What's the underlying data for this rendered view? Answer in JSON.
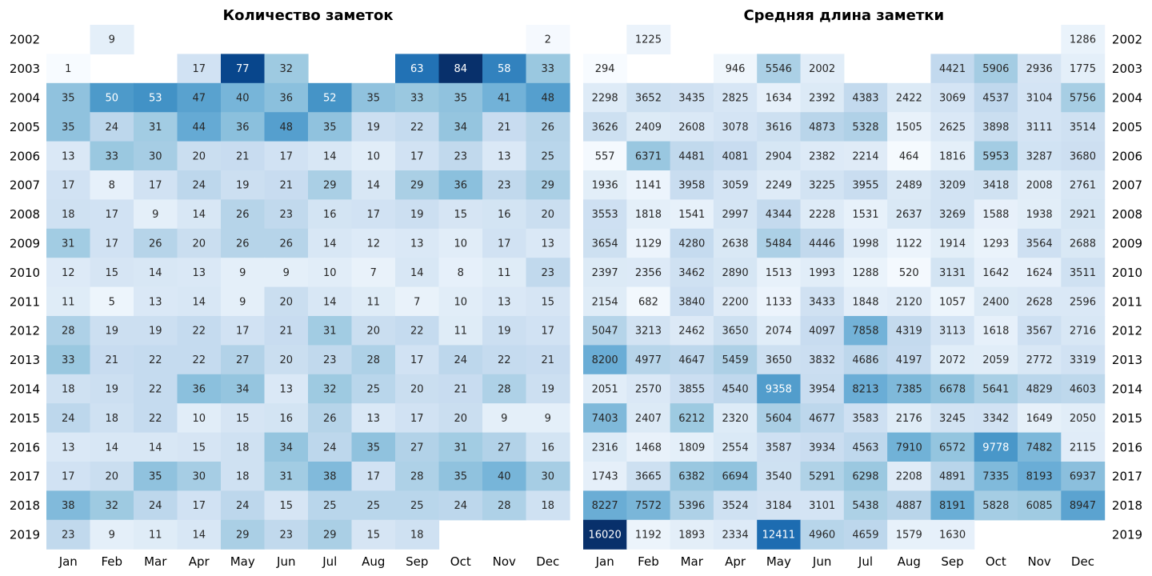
{
  "years": [
    "2002",
    "2003",
    "2004",
    "2005",
    "2006",
    "2007",
    "2008",
    "2009",
    "2010",
    "2011",
    "2012",
    "2013",
    "2014",
    "2015",
    "2016",
    "2017",
    "2018",
    "2019"
  ],
  "months": [
    "Jan",
    "Feb",
    "Mar",
    "Apr",
    "May",
    "Jun",
    "Jul",
    "Aug",
    "Sep",
    "Oct",
    "Nov",
    "Dec"
  ],
  "colormap": [
    "#f7fbff",
    "#deebf7",
    "#c6dbef",
    "#9ecae1",
    "#6baed6",
    "#4292c6",
    "#2171b5",
    "#08519c",
    "#08306b"
  ],
  "chart_data": [
    {
      "type": "heatmap",
      "title": "Количество заметок",
      "x": [
        "Jan",
        "Feb",
        "Mar",
        "Apr",
        "May",
        "Jun",
        "Jul",
        "Aug",
        "Sep",
        "Oct",
        "Nov",
        "Dec"
      ],
      "y": [
        "2002",
        "2003",
        "2004",
        "2005",
        "2006",
        "2007",
        "2008",
        "2009",
        "2010",
        "2011",
        "2012",
        "2013",
        "2014",
        "2015",
        "2016",
        "2017",
        "2018",
        "2019"
      ],
      "range": [
        1,
        84
      ],
      "values": [
        [
          null,
          9,
          null,
          null,
          null,
          null,
          null,
          null,
          null,
          null,
          null,
          2
        ],
        [
          1,
          null,
          null,
          17,
          77,
          32,
          null,
          null,
          63,
          84,
          58,
          33
        ],
        [
          35,
          50,
          53,
          47,
          40,
          36,
          52,
          35,
          33,
          35,
          41,
          48
        ],
        [
          35,
          24,
          31,
          44,
          36,
          48,
          35,
          19,
          22,
          34,
          21,
          26
        ],
        [
          13,
          33,
          30,
          20,
          21,
          17,
          14,
          10,
          17,
          23,
          13,
          25
        ],
        [
          17,
          8,
          17,
          24,
          19,
          21,
          29,
          14,
          29,
          36,
          23,
          29
        ],
        [
          18,
          17,
          9,
          14,
          26,
          23,
          16,
          17,
          19,
          15,
          16,
          20
        ],
        [
          31,
          17,
          26,
          20,
          26,
          26,
          14,
          12,
          13,
          10,
          17,
          13
        ],
        [
          12,
          15,
          14,
          13,
          9,
          9,
          10,
          7,
          14,
          8,
          11,
          23
        ],
        [
          11,
          5,
          13,
          14,
          9,
          20,
          14,
          11,
          7,
          10,
          13,
          15
        ],
        [
          28,
          19,
          19,
          22,
          17,
          21,
          31,
          20,
          22,
          11,
          19,
          17
        ],
        [
          33,
          21,
          22,
          22,
          27,
          20,
          23,
          28,
          17,
          24,
          22,
          21
        ],
        [
          18,
          19,
          22,
          36,
          34,
          13,
          32,
          25,
          20,
          21,
          28,
          19
        ],
        [
          24,
          18,
          22,
          10,
          15,
          16,
          26,
          13,
          17,
          20,
          9,
          9
        ],
        [
          13,
          14,
          14,
          15,
          18,
          34,
          24,
          35,
          27,
          31,
          27,
          16
        ],
        [
          17,
          20,
          35,
          30,
          18,
          31,
          38,
          17,
          28,
          35,
          40,
          30
        ],
        [
          38,
          32,
          24,
          17,
          24,
          15,
          25,
          25,
          25,
          24,
          28,
          18
        ],
        [
          23,
          9,
          11,
          14,
          29,
          23,
          29,
          15,
          18,
          null,
          null,
          null
        ]
      ]
    },
    {
      "type": "heatmap",
      "title": "Средняя длина заметки",
      "x": [
        "Jan",
        "Feb",
        "Mar",
        "Apr",
        "May",
        "Jun",
        "Jul",
        "Aug",
        "Sep",
        "Oct",
        "Nov",
        "Dec"
      ],
      "y": [
        "2002",
        "2003",
        "2004",
        "2005",
        "2006",
        "2007",
        "2008",
        "2009",
        "2010",
        "2011",
        "2012",
        "2013",
        "2014",
        "2015",
        "2016",
        "2017",
        "2018",
        "2019"
      ],
      "range": [
        294,
        16020
      ],
      "values": [
        [
          null,
          1225,
          null,
          null,
          null,
          null,
          null,
          null,
          null,
          null,
          null,
          1286
        ],
        [
          294,
          null,
          null,
          946,
          5546,
          2002,
          null,
          null,
          4421,
          5906,
          2936,
          1775
        ],
        [
          2298,
          3652,
          3435,
          2825,
          1634,
          2392,
          4383,
          2422,
          3069,
          4537,
          3104,
          5756
        ],
        [
          3626,
          2409,
          2608,
          3078,
          3616,
          4873,
          5328,
          1505,
          2625,
          3898,
          3111,
          3514
        ],
        [
          557,
          6371,
          4481,
          4081,
          2904,
          2382,
          2214,
          464,
          1816,
          5953,
          3287,
          3680
        ],
        [
          1936,
          1141,
          3958,
          3059,
          2249,
          3225,
          3955,
          2489,
          3209,
          3418,
          2008,
          2761
        ],
        [
          3553,
          1818,
          1541,
          2997,
          4344,
          2228,
          1531,
          2637,
          3269,
          1588,
          1938,
          2921
        ],
        [
          3654,
          1129,
          4280,
          2638,
          5484,
          4446,
          1998,
          1122,
          1914,
          1293,
          3564,
          2688
        ],
        [
          2397,
          2356,
          3462,
          2890,
          1513,
          1993,
          1288,
          520,
          3131,
          1642,
          1624,
          3511
        ],
        [
          2154,
          682,
          3840,
          2200,
          1133,
          3433,
          1848,
          2120,
          1057,
          2400,
          2628,
          2596
        ],
        [
          5047,
          3213,
          2462,
          3650,
          2074,
          4097,
          7858,
          4319,
          3113,
          1618,
          3567,
          2716
        ],
        [
          8200,
          4977,
          4647,
          5459,
          3650,
          3832,
          4686,
          4197,
          2072,
          2059,
          2772,
          3319
        ],
        [
          2051,
          2570,
          3855,
          4540,
          9358,
          3954,
          8213,
          7385,
          6678,
          5641,
          4829,
          4603
        ],
        [
          7403,
          2407,
          6212,
          2320,
          5604,
          4677,
          3583,
          2176,
          3245,
          3342,
          1649,
          2050
        ],
        [
          2316,
          1468,
          1809,
          2554,
          3587,
          3934,
          4563,
          7910,
          6572,
          9778,
          7482,
          2115
        ],
        [
          1743,
          3665,
          6382,
          6694,
          3540,
          5291,
          6298,
          2208,
          4891,
          7335,
          8193,
          6937
        ],
        [
          8227,
          7572,
          5396,
          3524,
          3184,
          3101,
          5438,
          4887,
          8191,
          5828,
          6085,
          8947
        ],
        [
          16020,
          1192,
          1893,
          2334,
          12411,
          4960,
          4659,
          1579,
          1630,
          null,
          null,
          null
        ]
      ]
    }
  ]
}
